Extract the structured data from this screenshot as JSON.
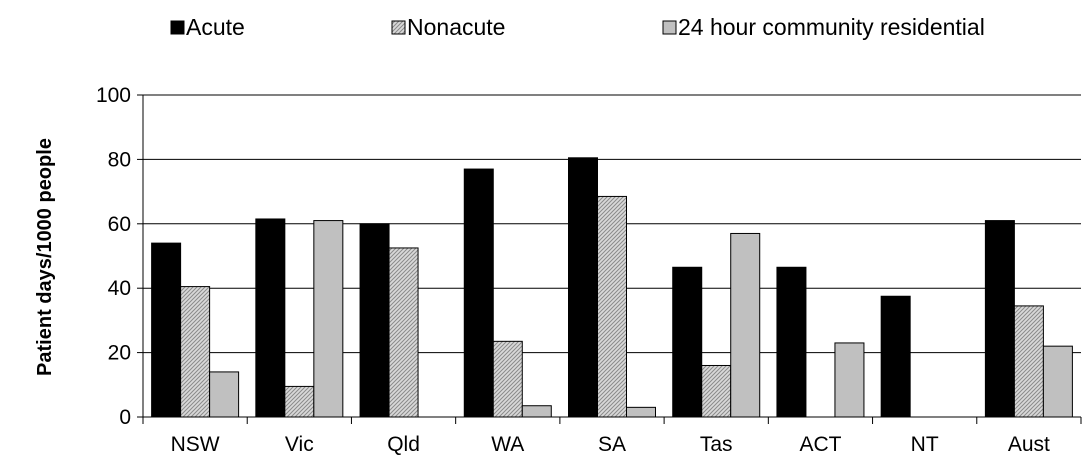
{
  "chart_data": {
    "type": "bar",
    "title": "",
    "xlabel": "",
    "ylabel": "Patient days/1000 people",
    "ylim": [
      0,
      100
    ],
    "yticks": [
      0,
      20,
      40,
      60,
      80,
      100
    ],
    "grid": true,
    "legend_position": "top",
    "categories": [
      "NSW",
      "Vic",
      "Qld",
      "WA",
      "SA",
      "Tas",
      "ACT",
      "NT",
      "Aust"
    ],
    "series": [
      {
        "name": "Acute",
        "color": "#000000",
        "fill": "solid",
        "values": [
          54,
          61.5,
          60,
          77,
          80.5,
          46.5,
          46.5,
          37.5,
          61
        ]
      },
      {
        "name": "Nonacute",
        "color": "#cccccc",
        "fill": "hatched",
        "values": [
          40.5,
          9.5,
          52.5,
          23.5,
          68.5,
          16,
          0,
          0,
          34.5
        ]
      },
      {
        "name": "24 hour community residential",
        "color": "#c0c0c0",
        "fill": "solid",
        "values": [
          14,
          61,
          0,
          3.5,
          3,
          57,
          23,
          0,
          22
        ]
      }
    ]
  }
}
